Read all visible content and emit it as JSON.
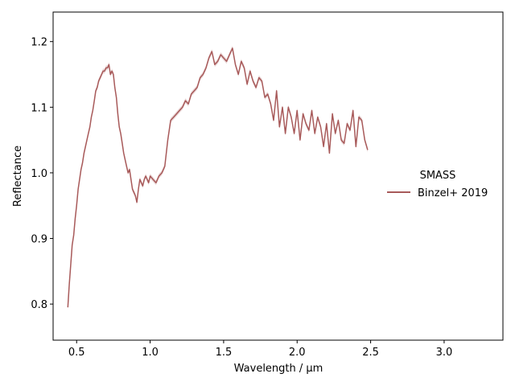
{
  "chart_data": {
    "type": "line",
    "xlabel": "Wavelength / µm",
    "ylabel": "Reflectance",
    "xlim": [
      0.34,
      3.4
    ],
    "ylim": [
      0.745,
      1.245
    ],
    "xticks": [
      0.5,
      1.0,
      1.5,
      2.0,
      2.5,
      3.0
    ],
    "xtick_labels": [
      "0.5",
      "1.0",
      "1.5",
      "2.0",
      "2.5",
      "3.0"
    ],
    "yticks": [
      0.8,
      0.9,
      1.0,
      1.1,
      1.2
    ],
    "ytick_labels": [
      "0.8",
      "0.9",
      "1.0",
      "1.1",
      "1.2"
    ],
    "grid": false,
    "legend": {
      "title": "SMASS",
      "placement": "right, outside axes",
      "entries": [
        "Binzel+ 2019"
      ]
    },
    "series": [
      {
        "name": "Binzel+ 2019",
        "color": "#a85a5a",
        "x": [
          0.44,
          0.45,
          0.46,
          0.47,
          0.48,
          0.49,
          0.5,
          0.51,
          0.52,
          0.53,
          0.54,
          0.55,
          0.56,
          0.57,
          0.58,
          0.59,
          0.6,
          0.61,
          0.62,
          0.63,
          0.64,
          0.65,
          0.66,
          0.67,
          0.68,
          0.69,
          0.7,
          0.71,
          0.72,
          0.73,
          0.74,
          0.75,
          0.76,
          0.77,
          0.78,
          0.79,
          0.8,
          0.81,
          0.82,
          0.83,
          0.84,
          0.85,
          0.86,
          0.87,
          0.88,
          0.89,
          0.9,
          0.91,
          0.92,
          0.93,
          0.94,
          0.95,
          0.96,
          0.97,
          0.98,
          0.99,
          1.0,
          1.02,
          1.04,
          1.06,
          1.08,
          1.1,
          1.12,
          1.14,
          1.16,
          1.18,
          1.2,
          1.22,
          1.24,
          1.26,
          1.28,
          1.3,
          1.32,
          1.34,
          1.36,
          1.38,
          1.4,
          1.42,
          1.44,
          1.46,
          1.48,
          1.5,
          1.52,
          1.54,
          1.56,
          1.58,
          1.6,
          1.62,
          1.64,
          1.66,
          1.68,
          1.7,
          1.72,
          1.74,
          1.76,
          1.78,
          1.8,
          1.82,
          1.84,
          1.86,
          1.88,
          1.9,
          1.92,
          1.94,
          1.96,
          1.98,
          2.0,
          2.02,
          2.04,
          2.06,
          2.08,
          2.1,
          2.12,
          2.14,
          2.16,
          2.18,
          2.2,
          2.22,
          2.24,
          2.26,
          2.28,
          2.3,
          2.32,
          2.34,
          2.36,
          2.38,
          2.4,
          2.42,
          2.44,
          2.46,
          2.48
        ],
        "y": [
          0.795,
          0.83,
          0.86,
          0.89,
          0.905,
          0.93,
          0.95,
          0.975,
          0.99,
          1.005,
          1.015,
          1.03,
          1.04,
          1.05,
          1.06,
          1.07,
          1.085,
          1.095,
          1.11,
          1.125,
          1.13,
          1.14,
          1.145,
          1.15,
          1.155,
          1.155,
          1.16,
          1.16,
          1.165,
          1.15,
          1.155,
          1.15,
          1.13,
          1.115,
          1.09,
          1.07,
          1.06,
          1.045,
          1.03,
          1.02,
          1.01,
          1.0,
          1.005,
          0.99,
          0.975,
          0.97,
          0.965,
          0.955,
          0.975,
          0.99,
          0.985,
          0.98,
          0.99,
          0.995,
          0.99,
          0.985,
          0.995,
          0.99,
          0.985,
          0.995,
          1.0,
          1.01,
          1.05,
          1.08,
          1.085,
          1.09,
          1.095,
          1.1,
          1.11,
          1.105,
          1.12,
          1.125,
          1.13,
          1.145,
          1.15,
          1.16,
          1.175,
          1.185,
          1.165,
          1.17,
          1.18,
          1.175,
          1.17,
          1.18,
          1.19,
          1.165,
          1.15,
          1.17,
          1.16,
          1.135,
          1.155,
          1.14,
          1.13,
          1.145,
          1.14,
          1.115,
          1.12,
          1.105,
          1.08,
          1.125,
          1.07,
          1.1,
          1.06,
          1.1,
          1.085,
          1.06,
          1.095,
          1.05,
          1.09,
          1.075,
          1.065,
          1.095,
          1.06,
          1.085,
          1.07,
          1.04,
          1.075,
          1.03,
          1.09,
          1.06,
          1.08,
          1.05,
          1.045,
          1.075,
          1.065,
          1.095,
          1.04,
          1.085,
          1.08,
          1.05,
          1.035
        ]
      }
    ]
  }
}
